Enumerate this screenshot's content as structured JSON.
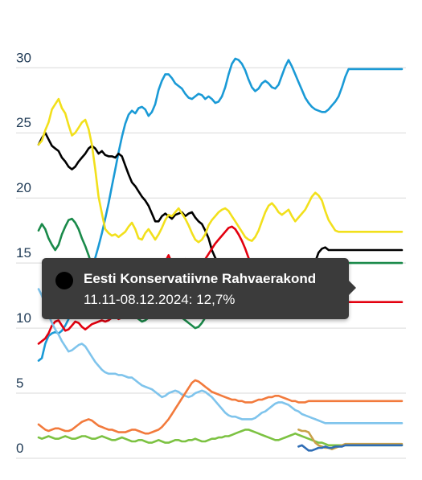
{
  "chart_data": {
    "type": "line",
    "title": "",
    "xlabel": "",
    "ylabel": "",
    "ylim": [
      0,
      31.5
    ],
    "yticks": [
      0,
      5,
      10,
      15,
      20,
      25,
      30
    ],
    "ytick_labels": [
      "0",
      "5",
      "10",
      "15",
      "20",
      "25",
      "30"
    ],
    "grid": true,
    "x_count": 110,
    "series": [
      {
        "color": "#1a9ad6",
        "values": [
          7.5,
          7.7,
          8.8,
          9.4,
          9.6,
          9.7,
          9.6,
          9.8,
          10.2,
          10.7,
          11.1,
          11.7,
          12.4,
          13.1,
          13.4,
          14.0,
          14.7,
          15.4,
          16.3,
          17.3,
          18.4,
          19.6,
          20.9,
          22.2,
          23.5,
          24.7,
          25.7,
          26.4,
          26.7,
          26.5,
          26.9,
          27.0,
          26.8,
          26.3,
          26.6,
          27.2,
          28.3,
          29.0,
          29.5,
          29.5,
          29.2,
          28.8,
          28.6,
          28.4,
          28.0,
          27.7,
          27.6,
          27.8,
          28.0,
          27.9,
          27.6,
          27.8,
          27.6,
          27.3,
          27.4,
          27.8,
          28.5,
          29.5,
          30.3,
          30.7,
          30.6,
          30.3,
          29.8,
          29.1,
          28.5,
          28.2,
          28.4,
          28.8,
          29.0,
          28.8,
          28.5,
          28.4,
          28.7,
          29.4,
          30.1,
          30.6,
          30.1,
          29.5,
          28.9,
          28.3,
          27.7,
          27.3,
          27.0,
          26.8,
          26.7,
          26.6,
          26.6,
          26.8,
          27.1,
          27.4,
          27.8,
          28.5,
          29.3,
          29.9,
          29.9,
          29.9,
          29.9,
          29.9,
          29.9,
          29.9,
          29.9,
          29.9,
          29.9,
          29.9,
          29.9,
          29.9,
          29.9,
          29.9,
          29.9,
          29.9
        ]
      },
      {
        "color": "#000000",
        "values": [
          24.1,
          24.6,
          25.0,
          24.5,
          24.0,
          23.8,
          23.6,
          23.1,
          22.8,
          22.4,
          22.2,
          22.4,
          22.8,
          23.1,
          23.4,
          23.8,
          24.0,
          23.8,
          23.4,
          23.6,
          23.3,
          23.2,
          23.2,
          23.1,
          23.4,
          23.2,
          22.5,
          21.8,
          21.2,
          20.9,
          20.5,
          20.1,
          19.8,
          19.4,
          18.8,
          18.2,
          18.2,
          18.6,
          18.8,
          18.6,
          18.4,
          18.7,
          18.8,
          18.9,
          18.6,
          18.8,
          18.9,
          18.5,
          18.2,
          18.0,
          17.5,
          16.9,
          16.0,
          15.4,
          15.0,
          15.2,
          15.0,
          14.7,
          14.5,
          14.6,
          14.7,
          14.9,
          15.0,
          14.8,
          14.6,
          14.4,
          14.1,
          13.9,
          13.7,
          13.6,
          13.5,
          13.4,
          13.3,
          13.1,
          12.9,
          12.8,
          12.8,
          12.7,
          12.7,
          12.7,
          12.8,
          13.2,
          14.0,
          15.1,
          15.8,
          16.1,
          16.2,
          16.0,
          16.0,
          16.0,
          16.0,
          16.0,
          16.0,
          16.0,
          16.0,
          16.0,
          16.0,
          16.0,
          16.0,
          16.0,
          16.0,
          16.0,
          16.0,
          16.0,
          16.0,
          16.0,
          16.0,
          16.0,
          16.0,
          16.0
        ]
      },
      {
        "color": "#f2e01c",
        "values": [
          24.1,
          24.4,
          25.2,
          25.8,
          26.8,
          27.2,
          27.6,
          26.9,
          26.5,
          25.6,
          24.8,
          25.0,
          25.4,
          25.8,
          26.0,
          25.3,
          24.1,
          22.2,
          20.1,
          18.8,
          17.6,
          17.3,
          17.1,
          17.2,
          17.0,
          17.2,
          17.4,
          17.8,
          18.1,
          17.6,
          16.9,
          16.8,
          17.3,
          17.6,
          17.2,
          16.8,
          17.2,
          17.7,
          18.3,
          18.7,
          18.6,
          18.9,
          19.2,
          18.8,
          18.4,
          17.9,
          17.3,
          16.8,
          16.6,
          16.8,
          17.2,
          17.9,
          18.3,
          18.6,
          18.9,
          19.1,
          19.2,
          19.0,
          18.6,
          18.2,
          17.8,
          17.4,
          17.0,
          16.8,
          16.7,
          17.0,
          17.5,
          18.2,
          18.9,
          19.4,
          19.6,
          19.3,
          18.9,
          18.7,
          18.9,
          19.1,
          18.6,
          18.2,
          18.5,
          18.8,
          19.1,
          19.6,
          20.1,
          20.4,
          20.2,
          19.8,
          19.0,
          18.3,
          17.9,
          17.5,
          17.4,
          17.4,
          17.4,
          17.4,
          17.4,
          17.4,
          17.4,
          17.4,
          17.4,
          17.4,
          17.4,
          17.4,
          17.4,
          17.4,
          17.4,
          17.4,
          17.4,
          17.4,
          17.4,
          17.4
        ]
      },
      {
        "color": "#e3000f",
        "values": [
          8.8,
          9.0,
          9.2,
          9.6,
          10.2,
          10.5,
          10.6,
          10.2,
          9.8,
          9.9,
          10.2,
          10.5,
          10.4,
          10.1,
          9.9,
          10.1,
          10.3,
          10.4,
          10.5,
          10.6,
          10.5,
          10.6,
          10.8,
          10.9,
          10.7,
          10.8,
          11.0,
          11.2,
          11.4,
          11.8,
          12.1,
          12.2,
          12.6,
          13.0,
          13.4,
          13.8,
          14.2,
          14.7,
          15.1,
          15.6,
          15.0,
          14.5,
          14.8,
          15.1,
          15.3,
          15.0,
          14.7,
          14.5,
          14.8,
          15.0,
          15.3,
          15.7,
          16.1,
          16.5,
          16.8,
          17.1,
          17.4,
          17.7,
          17.8,
          17.6,
          17.2,
          16.7,
          16.1,
          15.4,
          14.8,
          14.1,
          13.6,
          13.5,
          13.6,
          13.9,
          14.0,
          13.8,
          13.5,
          13.3,
          13.6,
          14.0,
          14.3,
          14.5,
          14.3,
          13.9,
          13.4,
          13.0,
          12.5,
          12.0,
          12.0,
          12.0,
          12.0,
          12.0,
          12.0,
          12.0,
          12.0,
          12.0,
          12.0,
          12.0,
          12.0,
          12.0,
          12.0,
          12.0,
          12.0,
          12.0,
          12.0,
          12.0,
          12.0,
          12.0,
          12.0,
          12.0,
          12.0,
          12.0,
          12.0,
          12.0
        ]
      },
      {
        "color": "#1a8a4a",
        "values": [
          17.5,
          18.0,
          17.6,
          16.9,
          16.4,
          16.0,
          16.4,
          17.2,
          17.8,
          18.3,
          18.4,
          18.1,
          17.6,
          16.9,
          16.3,
          15.6,
          14.8,
          14.2,
          13.6,
          13.2,
          12.8,
          12.5,
          12.3,
          12.1,
          12.0,
          11.8,
          11.6,
          11.4,
          11.1,
          10.9,
          10.7,
          10.5,
          10.6,
          10.8,
          11.1,
          11.4,
          11.8,
          12.1,
          12.3,
          12.2,
          11.9,
          11.6,
          11.2,
          10.8,
          10.6,
          10.4,
          10.2,
          10.0,
          10.1,
          10.4,
          10.8,
          11.3,
          11.8,
          12.2,
          12.6,
          12.9,
          13.1,
          13.2,
          13.3,
          13.4,
          13.3,
          13.1,
          13.0,
          12.9,
          12.8,
          12.7,
          12.8,
          13.0,
          13.2,
          13.5,
          13.8,
          14.0,
          14.2,
          14.1,
          14.0,
          13.9,
          13.8,
          13.8,
          13.9,
          14.1,
          14.4,
          14.7,
          15.0,
          15.1,
          15.0,
          14.9,
          15.0,
          15.0,
          15.0,
          15.0,
          15.0,
          15.0,
          15.0,
          15.0,
          15.0,
          15.0,
          15.0,
          15.0,
          15.0,
          15.0,
          15.0,
          15.0,
          15.0,
          15.0,
          15.0,
          15.0,
          15.0,
          15.0,
          15.0,
          15.0
        ]
      },
      {
        "color": "#7fc4ec",
        "values": [
          13.0,
          12.5,
          11.8,
          11.0,
          10.4,
          9.9,
          9.5,
          9.0,
          8.6,
          8.2,
          8.3,
          8.5,
          8.7,
          8.8,
          8.6,
          8.2,
          7.8,
          7.4,
          7.1,
          6.8,
          6.6,
          6.5,
          6.5,
          6.5,
          6.4,
          6.4,
          6.3,
          6.2,
          6.2,
          6.0,
          5.8,
          5.6,
          5.5,
          5.4,
          5.3,
          5.1,
          4.9,
          4.7,
          4.8,
          5.0,
          5.1,
          5.2,
          5.1,
          4.9,
          4.8,
          4.7,
          4.8,
          5.0,
          5.1,
          5.2,
          5.1,
          4.9,
          4.7,
          4.4,
          4.1,
          3.8,
          3.5,
          3.3,
          3.2,
          3.2,
          3.1,
          3.0,
          3.0,
          3.0,
          3.0,
          3.1,
          3.3,
          3.5,
          3.6,
          3.8,
          4.0,
          4.2,
          4.3,
          4.3,
          4.2,
          4.1,
          3.9,
          3.7,
          3.6,
          3.4,
          3.3,
          3.2,
          3.1,
          3.0,
          2.9,
          2.8,
          2.7,
          2.7,
          2.7,
          2.7,
          2.7,
          2.7,
          2.7,
          2.7,
          2.7,
          2.7,
          2.7,
          2.7,
          2.7,
          2.7,
          2.7,
          2.7,
          2.7,
          2.7,
          2.7,
          2.7,
          2.7,
          2.7,
          2.7,
          2.7
        ]
      },
      {
        "color": "#f27a3c",
        "values": [
          2.6,
          2.4,
          2.2,
          2.1,
          2.2,
          2.3,
          2.3,
          2.2,
          2.1,
          2.1,
          2.2,
          2.4,
          2.6,
          2.8,
          2.9,
          3.0,
          2.9,
          2.7,
          2.5,
          2.4,
          2.3,
          2.2,
          2.2,
          2.1,
          2.0,
          2.0,
          2.0,
          2.1,
          2.2,
          2.2,
          2.1,
          2.0,
          1.9,
          1.9,
          2.0,
          2.1,
          2.2,
          2.4,
          2.7,
          3.0,
          3.4,
          3.8,
          4.2,
          4.6,
          5.0,
          5.4,
          5.8,
          6.0,
          5.9,
          5.7,
          5.5,
          5.3,
          5.1,
          5.0,
          4.9,
          4.8,
          4.7,
          4.6,
          4.5,
          4.5,
          4.4,
          4.4,
          4.3,
          4.3,
          4.3,
          4.4,
          4.5,
          4.5,
          4.6,
          4.7,
          4.7,
          4.8,
          4.8,
          4.7,
          4.6,
          4.5,
          4.4,
          4.4,
          4.3,
          4.3,
          4.3,
          4.4,
          4.4,
          4.4,
          4.4,
          4.4,
          4.4,
          4.4,
          4.4,
          4.4,
          4.4,
          4.4,
          4.4,
          4.4,
          4.4,
          4.4,
          4.4,
          4.4,
          4.4,
          4.4,
          4.4,
          4.4,
          4.4,
          4.4,
          4.4,
          4.4,
          4.4,
          4.4,
          4.4,
          4.4
        ]
      },
      {
        "color": "#7cc242",
        "values": [
          1.6,
          1.5,
          1.6,
          1.7,
          1.6,
          1.5,
          1.5,
          1.6,
          1.7,
          1.6,
          1.5,
          1.5,
          1.6,
          1.7,
          1.7,
          1.6,
          1.5,
          1.5,
          1.6,
          1.7,
          1.6,
          1.5,
          1.4,
          1.4,
          1.5,
          1.6,
          1.5,
          1.4,
          1.3,
          1.3,
          1.4,
          1.4,
          1.3,
          1.2,
          1.2,
          1.3,
          1.4,
          1.3,
          1.2,
          1.2,
          1.3,
          1.4,
          1.4,
          1.3,
          1.3,
          1.4,
          1.4,
          1.5,
          1.4,
          1.3,
          1.3,
          1.4,
          1.5,
          1.5,
          1.6,
          1.6,
          1.7,
          1.7,
          1.8,
          1.9,
          2.0,
          2.1,
          2.2,
          2.2,
          2.1,
          2.0,
          1.9,
          1.8,
          1.7,
          1.6,
          1.5,
          1.4,
          1.4,
          1.5,
          1.6,
          1.7,
          1.8,
          1.9,
          1.8,
          1.7,
          1.6,
          1.5,
          1.4,
          1.3,
          1.2,
          1.2,
          1.1,
          1.0,
          1.0,
          1.0,
          1.0,
          1.0,
          1.0,
          1.0,
          1.0,
          1.0,
          1.0,
          1.0,
          1.0,
          1.0,
          1.0,
          1.0,
          1.0,
          1.0,
          1.0,
          1.0,
          1.0,
          1.0,
          1.0,
          1.0
        ]
      },
      {
        "color": "#c9a14a",
        "values": [
          null,
          null,
          null,
          null,
          null,
          null,
          null,
          null,
          null,
          null,
          null,
          null,
          null,
          null,
          null,
          null,
          null,
          null,
          null,
          null,
          null,
          null,
          null,
          null,
          null,
          null,
          null,
          null,
          null,
          null,
          null,
          null,
          null,
          null,
          null,
          null,
          null,
          null,
          null,
          null,
          null,
          null,
          null,
          null,
          null,
          null,
          null,
          null,
          null,
          null,
          null,
          null,
          null,
          null,
          null,
          null,
          null,
          null,
          null,
          null,
          null,
          null,
          null,
          null,
          null,
          null,
          null,
          null,
          null,
          null,
          null,
          null,
          null,
          null,
          null,
          null,
          null,
          null,
          2.2,
          2.1,
          2.1,
          2.0,
          1.6,
          1.2,
          1.0,
          0.9,
          0.8,
          0.8,
          0.7,
          0.8,
          0.9,
          1.0,
          1.1,
          1.1,
          1.1,
          1.1,
          1.1,
          1.1,
          1.1,
          1.1,
          1.1,
          1.1,
          1.1,
          1.1,
          1.1,
          1.1,
          1.1,
          1.1,
          1.1,
          1.1
        ]
      },
      {
        "color": "#2f6db5",
        "values": [
          null,
          null,
          null,
          null,
          null,
          null,
          null,
          null,
          null,
          null,
          null,
          null,
          null,
          null,
          null,
          null,
          null,
          null,
          null,
          null,
          null,
          null,
          null,
          null,
          null,
          null,
          null,
          null,
          null,
          null,
          null,
          null,
          null,
          null,
          null,
          null,
          null,
          null,
          null,
          null,
          null,
          null,
          null,
          null,
          null,
          null,
          null,
          null,
          null,
          null,
          null,
          null,
          null,
          null,
          null,
          null,
          null,
          null,
          null,
          null,
          null,
          null,
          null,
          null,
          null,
          null,
          null,
          null,
          null,
          null,
          null,
          null,
          null,
          null,
          null,
          null,
          null,
          null,
          0.9,
          1.0,
          0.8,
          0.6,
          0.6,
          0.7,
          0.8,
          0.8,
          0.9,
          0.8,
          0.8,
          0.9,
          0.9,
          0.9,
          1.0,
          1.0,
          1.0,
          1.0,
          1.0,
          1.0,
          1.0,
          1.0,
          1.0,
          1.0,
          1.0,
          1.0,
          1.0,
          1.0,
          1.0,
          1.0,
          1.0,
          1.0
        ]
      }
    ],
    "tooltip": {
      "party": "Eesti Konservatiivne Rahvaerakond",
      "value_text": "11.11-08.12.2024: 12,7%",
      "series_index": 1,
      "point_index": 78,
      "value": 12.7
    }
  }
}
